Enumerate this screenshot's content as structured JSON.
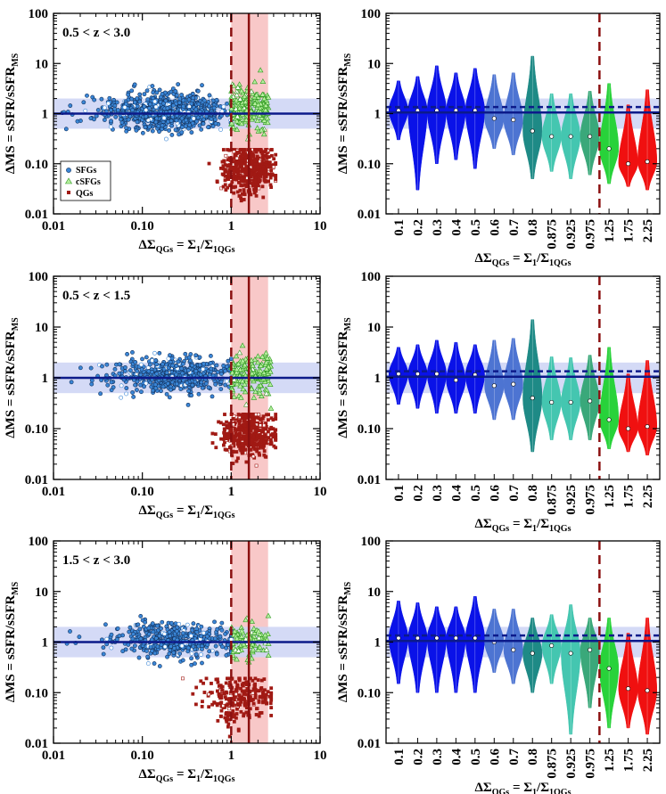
{
  "figure": {
    "colors": {
      "sfg_fill": "#3a86d6",
      "sfg_edge": "#12305c",
      "csfg_fill": "#b6ef9e",
      "csfg_edge": "#2f9a21",
      "qg_fill": "#a11a14",
      "ms_line": "#0c1a8a",
      "ms_band": "#cdd3f5",
      "threshold_line": "#8b1010",
      "threshold_band": "#f8c8c8",
      "axes": "#000000"
    },
    "legend": {
      "sfg": "SFGs",
      "csfg": "cSFGs",
      "qg": "QGs"
    }
  },
  "chart_data": [
    {
      "type": "scatter",
      "panel_label": "0.5 < z < 3.0",
      "xlabel_parts": [
        "ΔΣ",
        "QGs",
        " = Σ",
        "1",
        "/Σ",
        "1QGs"
      ],
      "ylabel_parts": [
        "ΔMS = sSFR/sSFR",
        "MS"
      ],
      "xscale": "log",
      "yscale": "log",
      "xlim": [
        0.01,
        10
      ],
      "ylim": [
        0.01,
        100
      ],
      "xticks": [
        0.01,
        0.1,
        1,
        10
      ],
      "xtick_labels": [
        "0.01",
        "0.10",
        "1",
        "10"
      ],
      "yticks": [
        0.01,
        0.1,
        1,
        10,
        100
      ],
      "ytick_labels": [
        "0.01",
        "0.10",
        "1",
        "10",
        "100"
      ],
      "ms_line": 1.0,
      "ms_band": [
        0.5,
        2.0
      ],
      "threshold_lines": [
        1.0,
        1.58
      ],
      "threshold_band": [
        1.0,
        2.6
      ],
      "show_legend": true,
      "series": [
        {
          "name": "SFGs",
          "n": 900,
          "x_log_mean": -0.7,
          "x_log_sd": 0.32,
          "x_log_range": [
            -1.9,
            0.0
          ],
          "y_log_mean": 0.04,
          "y_log_sd": 0.17,
          "y_log_range": [
            -0.75,
            0.9
          ]
        },
        {
          "name": "cSFGs",
          "n": 220,
          "x_log_range": [
            0.0,
            0.42
          ],
          "y_log_mean": 0.1,
          "y_log_sd": 0.2,
          "y_log_range": [
            -0.65,
            0.9
          ]
        },
        {
          "name": "QGs",
          "n": 650,
          "x_log_mean": 0.2,
          "x_log_sd": 0.14,
          "x_log_range": [
            -0.55,
            0.5
          ],
          "y_log_mean": -1.1,
          "y_log_sd": 0.22,
          "y_log_range": [
            -1.8,
            -0.72
          ]
        }
      ]
    },
    {
      "type": "violin",
      "xlabel_parts": [
        "ΔΣ",
        "QGs",
        " = Σ",
        "1",
        "/Σ",
        "1QGs"
      ],
      "ylabel_parts": [
        "ΔMS = sSFR/sSFR",
        "MS"
      ],
      "yscale": "log",
      "ylim": [
        0.01,
        100
      ],
      "yticks": [
        0.01,
        0.1,
        1,
        10,
        100
      ],
      "ytick_labels": [
        "0.01",
        "0.10",
        "1",
        "10",
        "100"
      ],
      "categories": [
        "0.1",
        "0.2",
        "0.3",
        "0.4",
        "0.5",
        "0.6",
        "0.7",
        "0.8",
        "0.875",
        "0.925",
        "0.975",
        "1.25",
        "1.75",
        "2.25"
      ],
      "medians": [
        1.15,
        1.15,
        1.15,
        1.15,
        1.15,
        0.8,
        0.75,
        0.45,
        0.35,
        0.35,
        0.35,
        0.2,
        0.1,
        0.11
      ],
      "ranges": [
        [
          0.3,
          4.5
        ],
        [
          0.03,
          5.5
        ],
        [
          0.1,
          9.0
        ],
        [
          0.12,
          6.5
        ],
        [
          0.08,
          8.0
        ],
        [
          0.2,
          6.0
        ],
        [
          0.15,
          6.5
        ],
        [
          0.05,
          14.0
        ],
        [
          0.07,
          2.5
        ],
        [
          0.05,
          2.5
        ],
        [
          0.06,
          2.8
        ],
        [
          0.04,
          4.0
        ],
        [
          0.035,
          1.5
        ],
        [
          0.03,
          3.0
        ]
      ],
      "colors": [
        "#0a12e8",
        "#0a12e8",
        "#0a12e8",
        "#0a12e8",
        "#0a12e8",
        "#4d74d2",
        "#4d74d2",
        "#1e8a86",
        "#44c6b0",
        "#44c6b0",
        "#3aa87a",
        "#28d23a",
        "#f01010",
        "#f01010"
      ],
      "ms_line": 1.05,
      "ms_band": [
        0.5,
        2.0
      ],
      "dashed_level": 1.35,
      "threshold_after_index": 10
    },
    {
      "type": "scatter",
      "panel_label": "0.5 < z < 1.5",
      "xlabel_parts": [
        "ΔΣ",
        "QGs",
        " = Σ",
        "1",
        "/Σ",
        "1QGs"
      ],
      "ylabel_parts": [
        "ΔMS = sSFR/sSFR",
        "MS"
      ],
      "xscale": "log",
      "yscale": "log",
      "xlim": [
        0.01,
        10
      ],
      "ylim": [
        0.01,
        100
      ],
      "xticks": [
        0.01,
        0.1,
        1,
        10
      ],
      "xtick_labels": [
        "0.01",
        "0.10",
        "1",
        "10"
      ],
      "yticks": [
        0.01,
        0.1,
        1,
        10,
        100
      ],
      "ytick_labels": [
        "0.01",
        "0.10",
        "1",
        "10",
        "100"
      ],
      "ms_line": 1.0,
      "ms_band": [
        0.5,
        2.0
      ],
      "threshold_lines": [
        1.0,
        1.58
      ],
      "threshold_band": [
        1.0,
        2.6
      ],
      "show_legend": false,
      "series": [
        {
          "name": "SFGs",
          "n": 600,
          "x_log_mean": -0.62,
          "x_log_sd": 0.28,
          "x_log_range": [
            -1.8,
            0.0
          ],
          "y_log_mean": 0.05,
          "y_log_sd": 0.17,
          "y_log_range": [
            -0.7,
            0.85
          ]
        },
        {
          "name": "cSFGs",
          "n": 160,
          "x_log_range": [
            0.0,
            0.45
          ],
          "y_log_mean": 0.1,
          "y_log_sd": 0.2,
          "y_log_range": [
            -0.65,
            0.75
          ]
        },
        {
          "name": "QGs",
          "n": 480,
          "x_log_mean": 0.2,
          "x_log_sd": 0.14,
          "x_log_range": [
            -0.6,
            0.5
          ],
          "y_log_mean": -1.1,
          "y_log_sd": 0.22,
          "y_log_range": [
            -1.8,
            -0.72
          ]
        }
      ]
    },
    {
      "type": "violin",
      "xlabel_parts": [
        "ΔΣ",
        "QGs",
        " = Σ",
        "1",
        "/Σ",
        "1QGs"
      ],
      "ylabel_parts": [
        "ΔMS = sSFR/sSFR",
        "MS"
      ],
      "yscale": "log",
      "ylim": [
        0.01,
        100
      ],
      "yticks": [
        0.01,
        0.1,
        1,
        10,
        100
      ],
      "ytick_labels": [
        "0.01",
        "0.10",
        "1",
        "10",
        "100"
      ],
      "categories": [
        "0.1",
        "0.2",
        "0.3",
        "0.4",
        "0.5",
        "0.6",
        "0.7",
        "0.8",
        "0.875",
        "0.925",
        "0.975",
        "1.25",
        "1.75",
        "2.25"
      ],
      "medians": [
        1.2,
        1.2,
        1.2,
        0.9,
        1.15,
        0.7,
        0.75,
        0.4,
        0.33,
        0.33,
        0.35,
        0.15,
        0.1,
        0.11
      ],
      "ranges": [
        [
          0.3,
          4.0
        ],
        [
          0.25,
          4.5
        ],
        [
          0.2,
          5.5
        ],
        [
          0.2,
          5.0
        ],
        [
          0.2,
          4.5
        ],
        [
          0.15,
          5.5
        ],
        [
          0.15,
          6.0
        ],
        [
          0.035,
          14.0
        ],
        [
          0.06,
          2.6
        ],
        [
          0.06,
          2.5
        ],
        [
          0.06,
          2.8
        ],
        [
          0.04,
          4.0
        ],
        [
          0.035,
          1.2
        ],
        [
          0.03,
          2.2
        ]
      ],
      "colors": [
        "#0a12e8",
        "#0a12e8",
        "#0a12e8",
        "#0a12e8",
        "#0a12e8",
        "#4d74d2",
        "#4d74d2",
        "#1e8a86",
        "#44c6b0",
        "#44c6b0",
        "#3aa87a",
        "#28d23a",
        "#f01010",
        "#f01010"
      ],
      "ms_line": 1.05,
      "ms_band": [
        0.5,
        2.0
      ],
      "dashed_level": 1.35,
      "threshold_after_index": 10
    },
    {
      "type": "scatter",
      "panel_label": "1.5 < z < 3.0",
      "xlabel_parts": [
        "ΔΣ",
        "QGs",
        " = Σ",
        "1",
        "/Σ",
        "1QGs"
      ],
      "ylabel_parts": [
        "ΔMS = sSFR/sSFR",
        "MS"
      ],
      "xscale": "log",
      "yscale": "log",
      "xlim": [
        0.01,
        10
      ],
      "ylim": [
        0.01,
        100
      ],
      "xticks": [
        0.01,
        0.1,
        1,
        10
      ],
      "xtick_labels": [
        "0.01",
        "0.10",
        "1",
        "10"
      ],
      "yticks": [
        0.01,
        0.1,
        1,
        10,
        100
      ],
      "ytick_labels": [
        "0.01",
        "0.10",
        "1",
        "10",
        "100"
      ],
      "ms_line": 1.0,
      "ms_band": [
        0.5,
        2.0
      ],
      "threshold_lines": [
        1.0,
        1.58
      ],
      "threshold_band": [
        1.0,
        2.6
      ],
      "show_legend": false,
      "series": [
        {
          "name": "SFGs",
          "n": 450,
          "x_log_mean": -0.6,
          "x_log_sd": 0.3,
          "x_log_range": [
            -1.85,
            0.0
          ],
          "y_log_mean": 0.05,
          "y_log_sd": 0.17,
          "y_log_range": [
            -0.7,
            0.8
          ]
        },
        {
          "name": "cSFGs",
          "n": 90,
          "x_log_range": [
            0.0,
            0.43
          ],
          "y_log_mean": 0.0,
          "y_log_sd": 0.2,
          "y_log_range": [
            -0.65,
            0.55
          ]
        },
        {
          "name": "QGs",
          "n": 260,
          "x_log_mean": 0.1,
          "x_log_sd": 0.2,
          "x_log_range": [
            -1.1,
            0.45
          ],
          "y_log_mean": -1.1,
          "y_log_sd": 0.24,
          "y_log_range": [
            -2.0,
            -0.72
          ]
        }
      ]
    },
    {
      "type": "violin",
      "xlabel_parts": [
        "ΔΣ",
        "QGs",
        " = Σ",
        "1",
        "/Σ",
        "1QGs"
      ],
      "ylabel_parts": [
        "ΔMS = sSFR/sSFR",
        "MS"
      ],
      "yscale": "log",
      "ylim": [
        0.01,
        100
      ],
      "yticks": [
        0.01,
        0.1,
        1,
        10,
        100
      ],
      "ytick_labels": [
        "0.01",
        "0.10",
        "1",
        "10",
        "100"
      ],
      "categories": [
        "0.1",
        "0.2",
        "0.3",
        "0.4",
        "0.5",
        "0.6",
        "0.7",
        "0.8",
        "0.875",
        "0.925",
        "0.975",
        "1.25",
        "1.75",
        "2.25"
      ],
      "medians": [
        1.2,
        1.2,
        1.2,
        1.2,
        1.2,
        1.0,
        0.7,
        0.6,
        0.85,
        0.6,
        0.7,
        0.3,
        0.12,
        0.11
      ],
      "ranges": [
        [
          0.15,
          6.5
        ],
        [
          0.1,
          6.0
        ],
        [
          0.1,
          5.0
        ],
        [
          0.1,
          5.0
        ],
        [
          0.1,
          8.0
        ],
        [
          0.25,
          4.5
        ],
        [
          0.15,
          4.5
        ],
        [
          0.1,
          3.0
        ],
        [
          0.15,
          3.5
        ],
        [
          0.015,
          5.5
        ],
        [
          0.05,
          3.0
        ],
        [
          0.02,
          3.0
        ],
        [
          0.02,
          1.5
        ],
        [
          0.015,
          3.0
        ]
      ],
      "colors": [
        "#0a12e8",
        "#0a12e8",
        "#0a12e8",
        "#0a12e8",
        "#0a12e8",
        "#4d74d2",
        "#4d74d2",
        "#1e8a86",
        "#44c6b0",
        "#44c6b0",
        "#3aa87a",
        "#28d23a",
        "#f01010",
        "#f01010"
      ],
      "ms_line": 1.05,
      "ms_band": [
        0.5,
        2.0
      ],
      "dashed_level": 1.35,
      "threshold_after_index": 10
    }
  ]
}
